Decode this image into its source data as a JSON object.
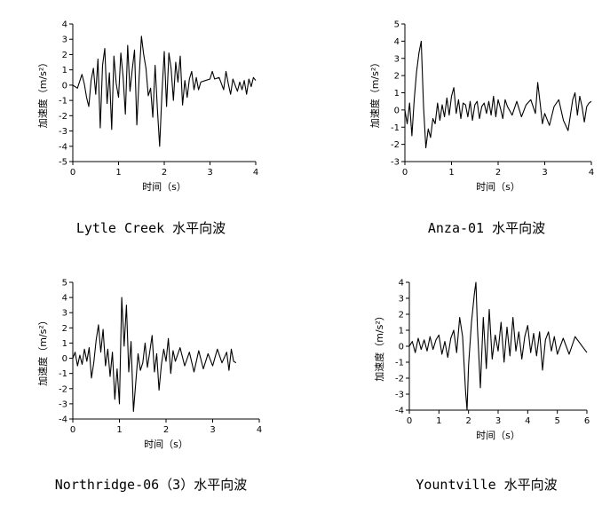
{
  "chart_data": [
    {
      "type": "line",
      "caption": "Lytle Creek 水平向波",
      "xlabel": "时间（s）",
      "ylabel": "加速度（m/s²）",
      "xlim": [
        0,
        4
      ],
      "ylim": [
        -5,
        4
      ],
      "xticks": [
        0,
        1,
        2,
        3,
        4
      ],
      "yticks": [
        -5,
        -4,
        -3,
        -2,
        -1,
        0,
        1,
        2,
        3,
        4
      ],
      "series": [
        {
          "x": [
            0,
            0.1,
            0.2,
            0.25,
            0.3,
            0.35,
            0.4,
            0.45,
            0.5,
            0.55,
            0.6,
            0.65,
            0.7,
            0.75,
            0.8,
            0.85,
            0.9,
            0.95,
            1.0,
            1.05,
            1.1,
            1.15,
            1.2,
            1.25,
            1.3,
            1.35,
            1.4,
            1.45,
            1.5,
            1.55,
            1.6,
            1.65,
            1.7,
            1.75,
            1.8,
            1.85,
            1.9,
            1.95,
            2.0,
            2.05,
            2.1,
            2.15,
            2.2,
            2.25,
            2.3,
            2.35,
            2.4,
            2.45,
            2.5,
            2.55,
            2.6,
            2.65,
            2.7,
            2.75,
            2.8,
            2.9,
            3.0,
            3.05,
            3.1,
            3.2,
            3.3,
            3.35,
            3.4,
            3.45,
            3.5,
            3.55,
            3.6,
            3.65,
            3.7,
            3.75,
            3.8,
            3.85,
            3.9,
            3.95,
            4.0
          ],
          "y": [
            0,
            -0.2,
            0.7,
            0.1,
            -0.8,
            -1.4,
            0.3,
            1.1,
            -0.6,
            1.7,
            -2.8,
            1.3,
            2.4,
            -1.2,
            0.8,
            -2.9,
            1.9,
            0.1,
            -0.8,
            2.1,
            0.5,
            -1.9,
            2.6,
            -0.4,
            1.0,
            2.3,
            -2.6,
            0.5,
            3.2,
            2.0,
            1.1,
            -0.7,
            -0.2,
            -2.1,
            1.3,
            -1.6,
            -4.0,
            -0.5,
            2.2,
            -1.4,
            2.1,
            1.1,
            -1.0,
            1.5,
            0.2,
            1.9,
            -1.3,
            0.3,
            -0.8,
            0.4,
            0.9,
            -0.3,
            0.5,
            -0.3,
            0.2,
            0.3,
            0.4,
            0.9,
            0.4,
            0.5,
            -0.3,
            0.9,
            0.1,
            -0.6,
            0.4,
            0.0,
            -0.4,
            0.2,
            -0.3,
            0.3,
            -0.6,
            0.4,
            -0.1,
            0.5,
            0.3
          ]
        }
      ]
    },
    {
      "type": "line",
      "caption": "Anza-01 水平向波",
      "xlabel": "时间（s）",
      "ylabel": "加速度（m/s²）",
      "xlim": [
        0,
        4
      ],
      "ylim": [
        -3,
        5
      ],
      "xticks": [
        0,
        1,
        2,
        3,
        4
      ],
      "yticks": [
        -3,
        -2,
        -1,
        0,
        1,
        2,
        3,
        4,
        5
      ],
      "series": [
        {
          "x": [
            0,
            0.05,
            0.1,
            0.15,
            0.2,
            0.25,
            0.3,
            0.35,
            0.4,
            0.45,
            0.5,
            0.55,
            0.6,
            0.65,
            0.7,
            0.75,
            0.8,
            0.85,
            0.9,
            0.95,
            1.0,
            1.05,
            1.1,
            1.15,
            1.2,
            1.25,
            1.3,
            1.35,
            1.4,
            1.45,
            1.5,
            1.55,
            1.6,
            1.65,
            1.7,
            1.75,
            1.8,
            1.85,
            1.9,
            1.95,
            2.0,
            2.05,
            2.1,
            2.15,
            2.2,
            2.3,
            2.4,
            2.5,
            2.6,
            2.7,
            2.8,
            2.85,
            2.9,
            2.95,
            3.0,
            3.1,
            3.2,
            3.3,
            3.4,
            3.5,
            3.6,
            3.65,
            3.7,
            3.75,
            3.8,
            3.85,
            3.9,
            3.95,
            4.0
          ],
          "y": [
            0,
            -0.8,
            0.4,
            -1.5,
            0.6,
            2.2,
            3.3,
            4.0,
            0.2,
            -2.2,
            -1.1,
            -1.6,
            -0.5,
            -0.8,
            0.4,
            -0.6,
            0.3,
            -0.4,
            0.7,
            -0.3,
            0.8,
            1.3,
            -0.2,
            0.6,
            -0.5,
            0.4,
            0.3,
            -0.4,
            0.5,
            -0.6,
            0.3,
            0.5,
            -0.5,
            0.2,
            0.4,
            -0.2,
            0.5,
            -0.3,
            0.8,
            -0.4,
            0.6,
            0.1,
            -0.5,
            0.6,
            0.2,
            -0.3,
            0.5,
            -0.4,
            0.3,
            0.6,
            -0.2,
            1.6,
            0.4,
            -0.8,
            -0.2,
            -0.9,
            0.2,
            0.6,
            -0.6,
            -1.2,
            0.6,
            1.0,
            -0.3,
            0.8,
            0.2,
            -0.7,
            0.2,
            0.4,
            0.5
          ]
        }
      ]
    },
    {
      "type": "line",
      "caption": "Northridge-06（3）水平向波",
      "xlabel": "时间（s）",
      "ylabel": "加速度（m/s²）",
      "xlim": [
        0,
        4
      ],
      "ylim": [
        -4,
        5
      ],
      "xticks": [
        0,
        1,
        2,
        3,
        4
      ],
      "yticks": [
        -4,
        -3,
        -2,
        -1,
        0,
        1,
        2,
        3,
        4,
        5
      ],
      "series": [
        {
          "x": [
            0,
            0.05,
            0.1,
            0.15,
            0.2,
            0.25,
            0.3,
            0.35,
            0.4,
            0.45,
            0.5,
            0.55,
            0.6,
            0.65,
            0.7,
            0.75,
            0.8,
            0.85,
            0.9,
            0.95,
            1.0,
            1.05,
            1.1,
            1.15,
            1.2,
            1.25,
            1.3,
            1.35,
            1.4,
            1.45,
            1.5,
            1.55,
            1.6,
            1.65,
            1.7,
            1.75,
            1.8,
            1.85,
            1.9,
            1.95,
            2.0,
            2.05,
            2.1,
            2.15,
            2.2,
            2.3,
            2.4,
            2.5,
            2.6,
            2.7,
            2.8,
            2.9,
            3.0,
            3.1,
            3.2,
            3.3,
            3.35,
            3.4,
            3.45,
            3.5
          ],
          "y": [
            0,
            0.4,
            -0.5,
            0.2,
            -0.4,
            0.6,
            -0.2,
            0.7,
            -1.3,
            -0.3,
            1.2,
            2.2,
            0.4,
            1.9,
            -0.5,
            0.6,
            -1.2,
            0.4,
            -2.7,
            -0.7,
            -3.0,
            4.0,
            0.8,
            3.5,
            -0.9,
            1.1,
            -3.5,
            -1.6,
            0.3,
            -0.8,
            -0.3,
            1.0,
            -0.6,
            0.4,
            1.5,
            -0.9,
            0.3,
            -2.1,
            -0.4,
            0.6,
            -0.2,
            1.3,
            -1.0,
            0.5,
            -0.2,
            0.7,
            -0.5,
            0.4,
            -0.9,
            0.5,
            -0.7,
            0.3,
            -0.5,
            0.6,
            -0.3,
            0.4,
            -0.8,
            0.6,
            -0.2,
            -0.3
          ]
        }
      ]
    },
    {
      "type": "line",
      "caption": "Yountville 水平向波",
      "xlabel": "时间（s）",
      "ylabel": "加速度（m/s²）",
      "xlim": [
        0,
        6
      ],
      "ylim": [
        -4,
        4
      ],
      "xticks": [
        0,
        1,
        2,
        3,
        4,
        5,
        6
      ],
      "yticks": [
        -4,
        -3,
        -2,
        -1,
        0,
        1,
        2,
        3,
        4
      ],
      "series": [
        {
          "x": [
            0,
            0.1,
            0.2,
            0.3,
            0.4,
            0.5,
            0.6,
            0.7,
            0.8,
            0.9,
            1.0,
            1.1,
            1.2,
            1.3,
            1.4,
            1.5,
            1.6,
            1.7,
            1.8,
            1.9,
            1.95,
            2.0,
            2.1,
            2.2,
            2.25,
            2.3,
            2.4,
            2.5,
            2.6,
            2.7,
            2.8,
            2.9,
            3.0,
            3.1,
            3.2,
            3.3,
            3.4,
            3.5,
            3.6,
            3.7,
            3.8,
            3.9,
            4.0,
            4.1,
            4.2,
            4.3,
            4.4,
            4.5,
            4.6,
            4.7,
            4.8,
            4.9,
            5.0,
            5.2,
            5.4,
            5.6,
            5.8,
            6.0
          ],
          "y": [
            0,
            0.3,
            -0.4,
            0.5,
            -0.2,
            0.4,
            -0.3,
            0.6,
            -0.2,
            0.4,
            0.7,
            -0.5,
            0.3,
            -0.7,
            0.5,
            1.0,
            -0.4,
            1.8,
            0.6,
            -2.8,
            -4.0,
            -1.2,
            1.5,
            3.3,
            4.0,
            1.2,
            -2.6,
            1.8,
            -1.4,
            2.3,
            -0.8,
            0.7,
            -0.3,
            1.5,
            -1.0,
            1.2,
            -0.6,
            1.8,
            -0.3,
            0.9,
            -0.8,
            0.6,
            1.3,
            -0.4,
            0.8,
            -0.6,
            0.9,
            -1.5,
            0.4,
            0.9,
            -0.3,
            0.6,
            -0.5,
            0.5,
            -0.5,
            0.6,
            0.1,
            -0.4
          ]
        }
      ]
    }
  ]
}
